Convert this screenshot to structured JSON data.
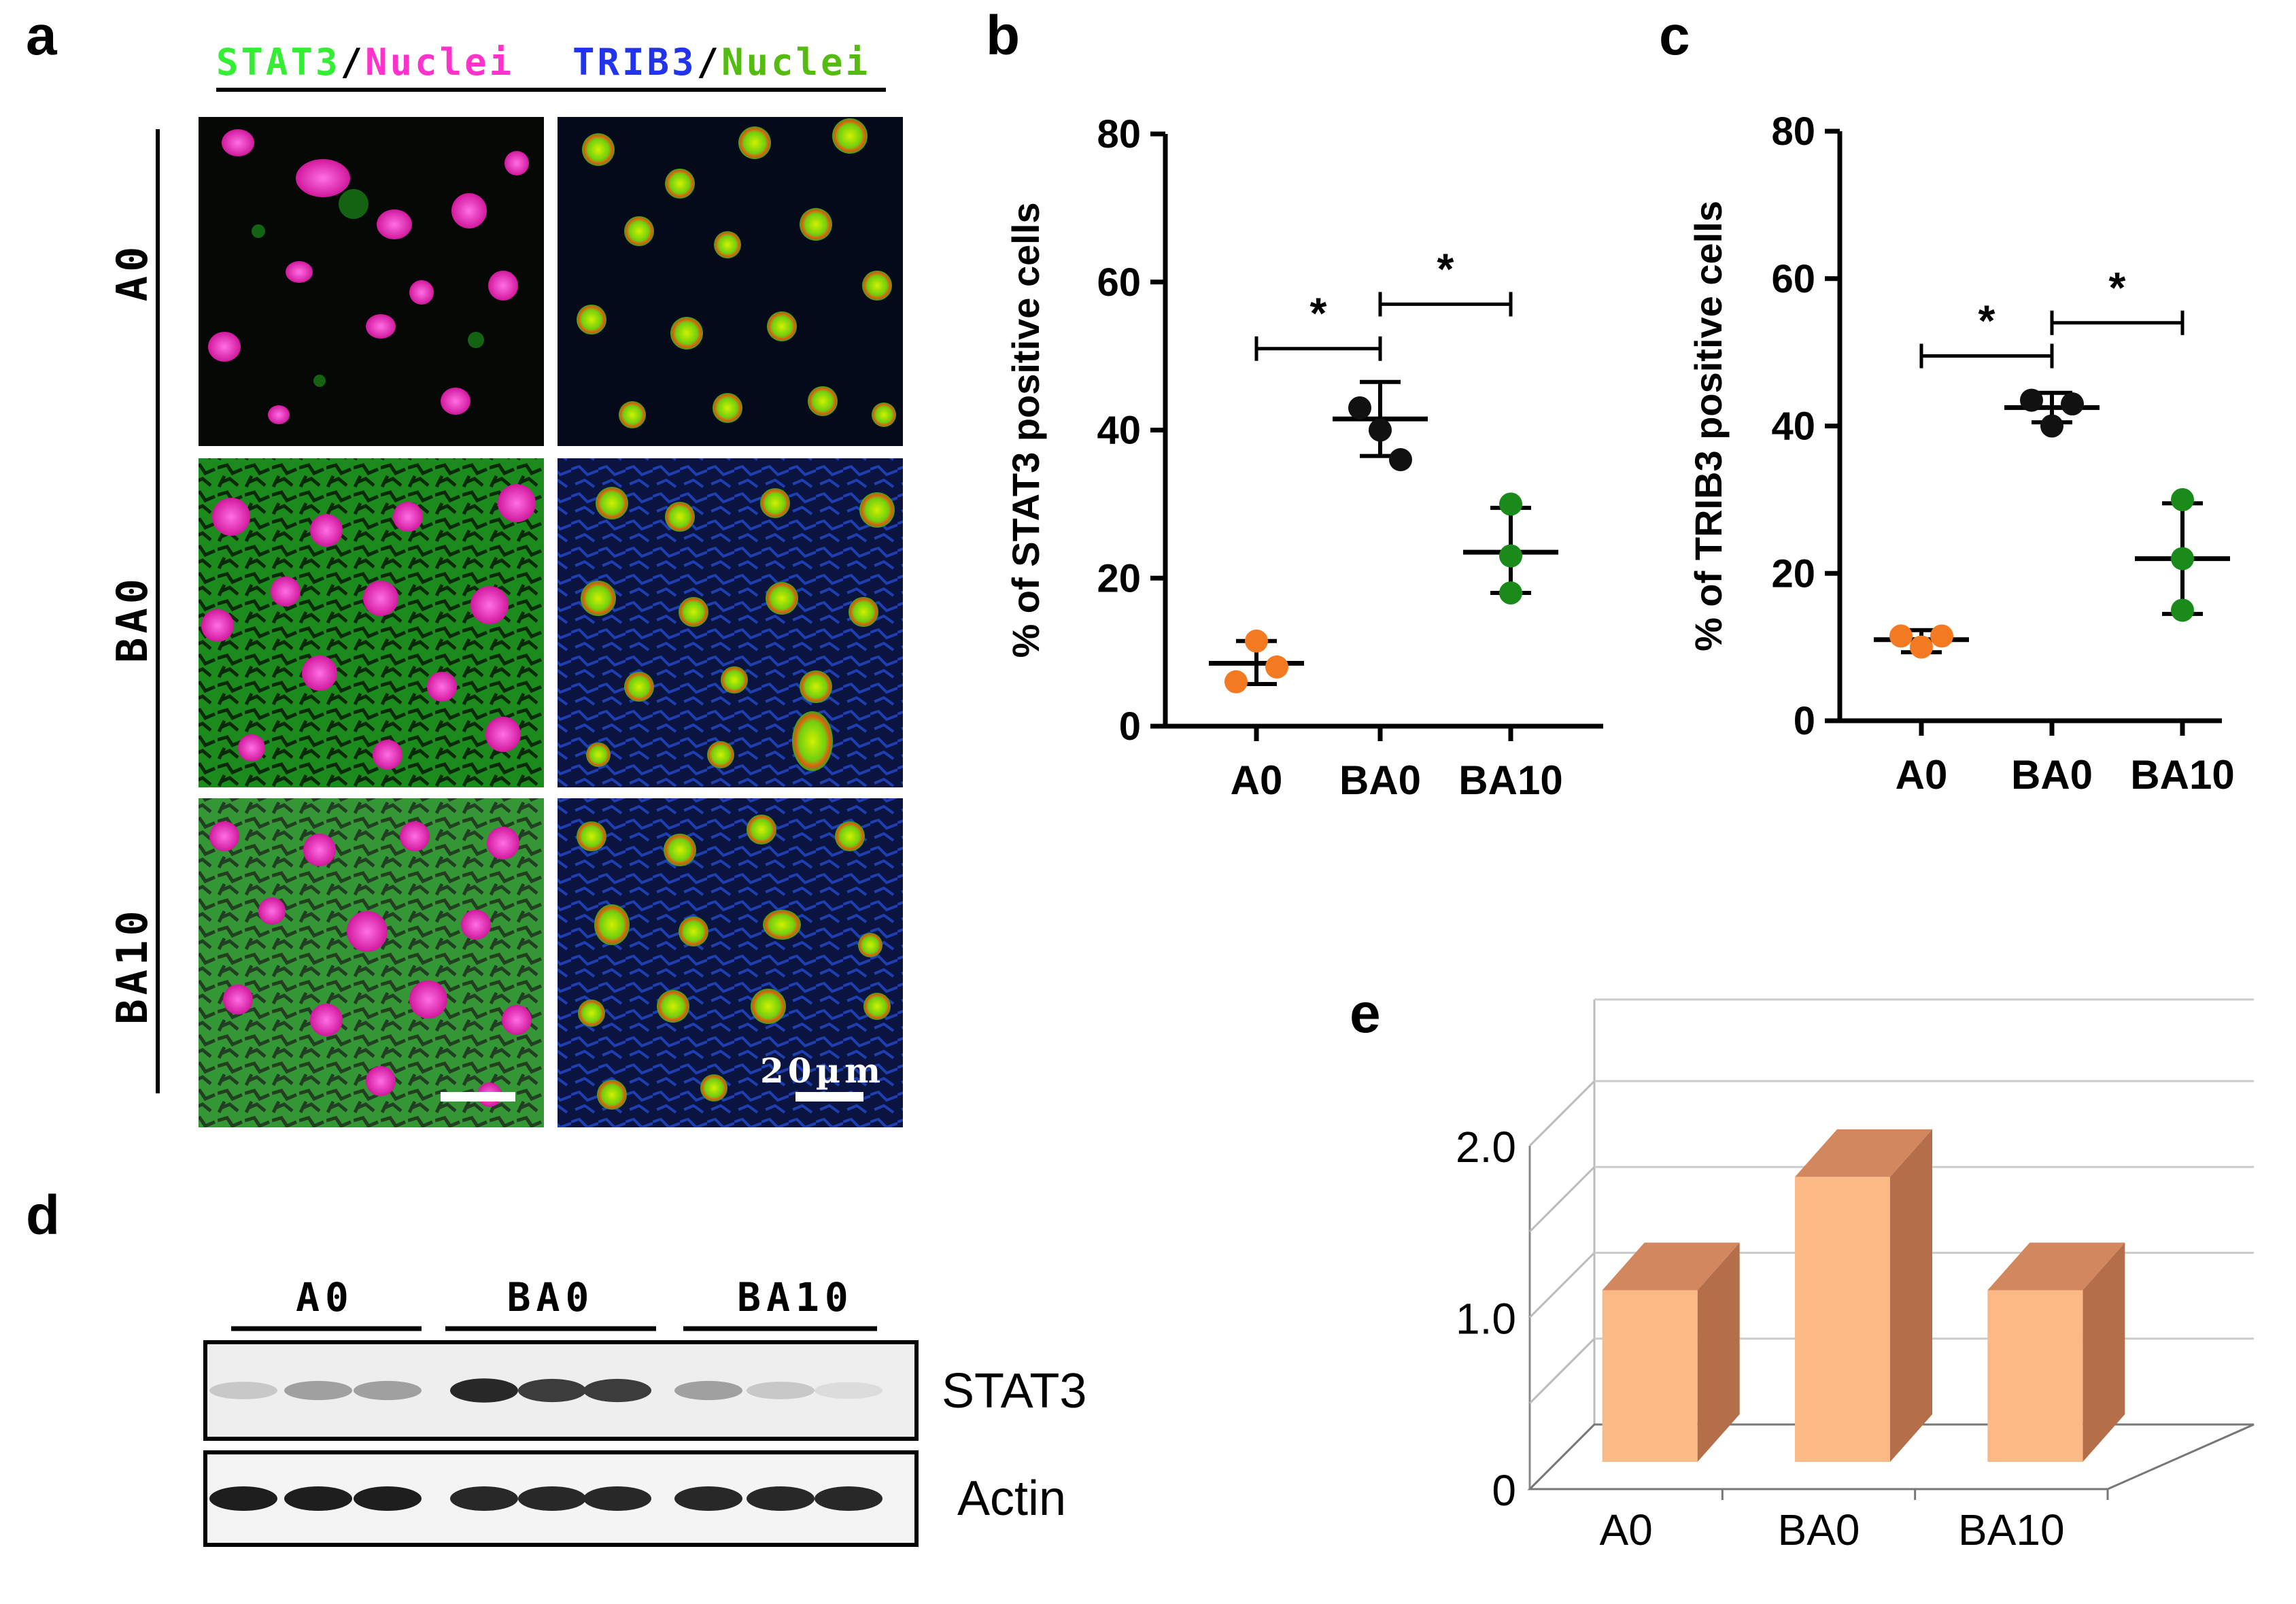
{
  "panel_labels": {
    "a": "a",
    "b": "b",
    "c": "c",
    "d": "d",
    "e": "e"
  },
  "panel_a": {
    "header_left": {
      "stat3": "STAT3",
      "slash": "/",
      "nuclei": "Nuclei"
    },
    "header_right": {
      "trib3": "TRIB3",
      "slash": "/",
      "nuclei": "Nuclei"
    },
    "rows": [
      "A0",
      "BA0",
      "BA10"
    ],
    "scale_bar_label": "20µm",
    "colors": {
      "stat3": "#33ee33",
      "nuclei_magenta": "#ff33cc",
      "trib3": "#2233ee",
      "nuclei_green": "#55bb11"
    }
  },
  "chart_data": [
    {
      "panel": "b",
      "type": "scatter",
      "title": "",
      "ylabel": "% of STAT3 positive cells",
      "xlabel": "",
      "categories": [
        "A0",
        "BA0",
        "BA10"
      ],
      "ylim": [
        0,
        80
      ],
      "yticks": [
        0,
        20,
        40,
        60,
        80
      ],
      "series": [
        {
          "name": "A0",
          "color": "#f47a22",
          "points": [
            6,
            11.5,
            8
          ],
          "mean": 8.5,
          "sd_low": 5.7,
          "sd_high": 11.5
        },
        {
          "name": "BA0",
          "color": "#111111",
          "points": [
            43,
            40,
            36
          ],
          "mean": 41.5,
          "sd_low": 36.5,
          "sd_high": 46.5
        },
        {
          "name": "BA10",
          "color": "#1a8a1a",
          "points": [
            30,
            23,
            18
          ],
          "mean": 23.5,
          "sd_low": 18,
          "sd_high": 29.5
        }
      ],
      "significance": [
        {
          "from": "A0",
          "to": "BA0",
          "y": 51,
          "label": "*"
        },
        {
          "from": "BA0",
          "to": "BA10",
          "y": 57,
          "label": "*"
        }
      ]
    },
    {
      "panel": "c",
      "type": "scatter",
      "title": "",
      "ylabel": "% of TRIB3 positive cells",
      "xlabel": "",
      "categories": [
        "A0",
        "BA0",
        "BA10"
      ],
      "ylim": [
        0,
        80
      ],
      "yticks": [
        0,
        20,
        40,
        60,
        80
      ],
      "series": [
        {
          "name": "A0",
          "color": "#f47a22",
          "points": [
            11.5,
            10,
            11.5
          ],
          "mean": 11,
          "sd_low": 9.3,
          "sd_high": 12.3
        },
        {
          "name": "BA0",
          "color": "#111111",
          "points": [
            43.5,
            40,
            43
          ],
          "mean": 42.5,
          "sd_low": 40.5,
          "sd_high": 44.5
        },
        {
          "name": "BA10",
          "color": "#1a8a1a",
          "points": [
            30,
            22,
            15
          ],
          "mean": 22,
          "sd_low": 14.5,
          "sd_high": 29.5
        }
      ],
      "significance": [
        {
          "from": "A0",
          "to": "BA0",
          "y": 49.5,
          "label": "*"
        },
        {
          "from": "BA0",
          "to": "BA10",
          "y": 54,
          "label": "*"
        }
      ]
    },
    {
      "panel": "e",
      "type": "bar",
      "title": "",
      "xlabel": "",
      "ylabel": "",
      "categories": [
        "A0",
        "BA0",
        "BA10"
      ],
      "values": [
        1.0,
        1.66,
        1.0
      ],
      "ylim": [
        0,
        2.0
      ],
      "ytick_labels": [
        "0",
        "1.0",
        "2.0"
      ],
      "colors": {
        "front": "#fbb985",
        "top": "#d3875f",
        "side": "#b46e4a"
      }
    }
  ],
  "panel_d": {
    "groups": [
      "A0",
      "BA0",
      "BA10"
    ],
    "blots": [
      "STAT3",
      "Actin"
    ],
    "stat3_band_intensity": [
      0.15,
      0.35,
      0.35,
      0.95,
      0.85,
      0.85,
      0.35,
      0.15,
      0.05
    ],
    "actin_band_intensity": [
      1.0,
      1.0,
      1.0,
      0.95,
      0.95,
      0.95,
      0.95,
      0.95,
      0.95
    ]
  }
}
